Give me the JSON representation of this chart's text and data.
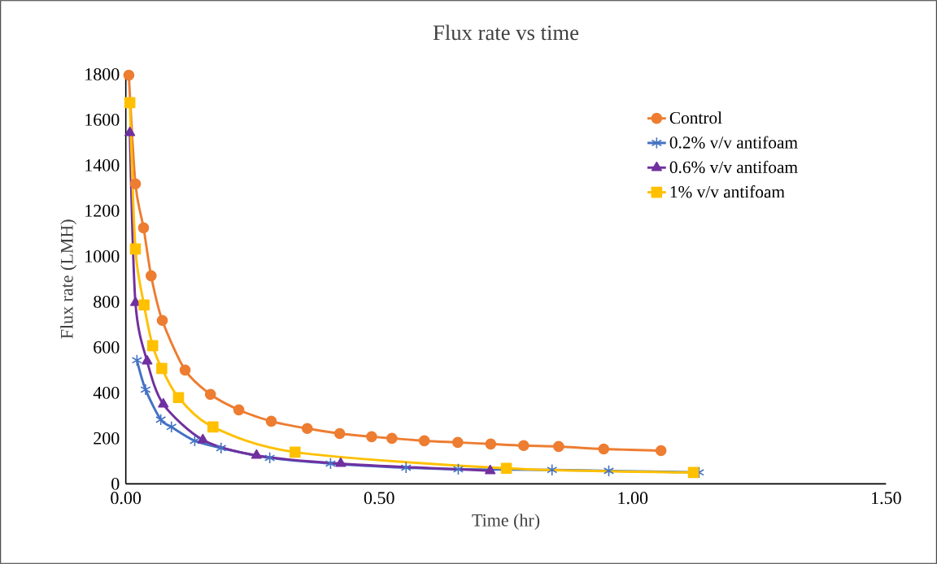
{
  "chart_data": {
    "type": "line",
    "title": "Flux rate vs time",
    "xlabel": "Time (hr)",
    "ylabel": "Flux rate (LMH)",
    "xlim": [
      0,
      1.5
    ],
    "xticks": [
      {
        "value": 0,
        "label": "0.00"
      },
      {
        "value": 0.5,
        "label": "0.50"
      },
      {
        "value": 1.0,
        "label": "1.00"
      },
      {
        "value": 1.5,
        "label": "1.50"
      }
    ],
    "ylim": [
      0,
      1800
    ],
    "yticks": [
      0,
      200,
      400,
      600,
      800,
      1000,
      1200,
      1400,
      1600,
      1800
    ],
    "grid": false,
    "legend": "top right",
    "line_style": "solid",
    "series": [
      {
        "name": "Control",
        "color": "#ed7d31",
        "marker": "circle",
        "x": [
          0.006,
          0.019,
          0.035,
          0.05,
          0.072,
          0.117,
          0.167,
          0.223,
          0.287,
          0.358,
          0.422,
          0.485,
          0.525,
          0.589,
          0.655,
          0.72,
          0.785,
          0.854,
          0.943,
          1.056
        ],
        "values": [
          1796,
          1318,
          1125,
          914,
          718,
          500,
          393,
          325,
          275,
          243,
          221,
          207,
          200,
          189,
          182,
          175,
          168,
          164,
          153,
          146
        ]
      },
      {
        "name": "0.2% v/v antifoam",
        "color": "#4472c4",
        "marker": "cross",
        "x": [
          0.022,
          0.039,
          0.069,
          0.09,
          0.136,
          0.188,
          0.284,
          0.404,
          0.553,
          0.656,
          0.744,
          0.841,
          0.953,
          1.131
        ],
        "values": [
          543,
          414,
          282,
          250,
          189,
          157,
          114,
          89,
          71,
          64,
          null,
          61,
          57,
          50
        ]
      },
      {
        "name": "0.6% v/v antifoam",
        "color": "#7030a0",
        "marker": "triangle",
        "x": [
          0.008,
          0.019,
          0.042,
          0.074,
          0.152,
          0.258,
          0.424,
          0.719
        ],
        "values": [
          1543,
          796,
          539,
          350,
          193,
          125,
          89,
          57
        ]
      },
      {
        "name": "1% v/v antifoam",
        "color": "#ffc000",
        "marker": "square",
        "x": [
          0.008,
          0.019,
          0.036,
          0.053,
          0.071,
          0.104,
          0.172,
          0.334,
          0.751,
          1.12
        ],
        "values": [
          1675,
          1032,
          786,
          607,
          507,
          379,
          250,
          139,
          68,
          50
        ]
      }
    ]
  }
}
